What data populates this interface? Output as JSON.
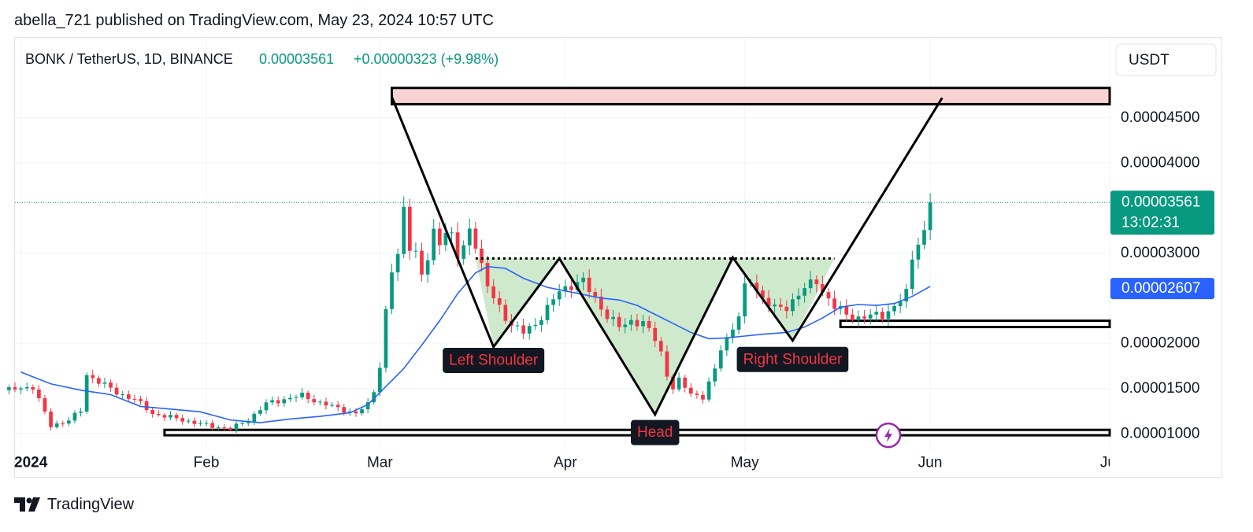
{
  "header": {
    "published": "abella_721 published on TradingView.com, May 23, 2024 10:57 UTC"
  },
  "footer": {
    "brand": "TradingView",
    "logo_icon": "tradingview-logo-icon"
  },
  "chart_data": {
    "type": "candlestick",
    "symbol_line": {
      "title": "BONK / TetherUS, 1D, BINANCE",
      "last": "0.00003561",
      "change": "+0.00000323 (+9.98%)"
    },
    "currency_button": "USDT",
    "price_scale": {
      "range": [
        8.5e-06,
        4.95e-05
      ],
      "ticks": [
        {
          "v": 4.5e-05,
          "label": "0.00004500"
        },
        {
          "v": 4e-05,
          "label": "0.00004000"
        },
        {
          "v": 3e-05,
          "label": "0.00003000"
        },
        {
          "v": 2e-05,
          "label": "0.00002000"
        },
        {
          "v": 1.5e-05,
          "label": "0.00001500"
        },
        {
          "v": 1e-05,
          "label": "0.00001000"
        }
      ],
      "badges": [
        {
          "name": "last-price-badge",
          "v": 3.561e-05,
          "label": "0.00003561",
          "sub": "13:02:31",
          "color": "#089981"
        },
        {
          "name": "ma-value-badge",
          "v": 2.607e-05,
          "label": "0.00002607",
          "color": "#2962ff"
        }
      ]
    },
    "time_scale": {
      "range": [
        -1,
        182
      ],
      "labels": [
        {
          "d": 0,
          "label": "2024",
          "bold": true
        },
        {
          "d": 31,
          "label": "Feb"
        },
        {
          "d": 60,
          "label": "Mar"
        },
        {
          "d": 91,
          "label": "Apr"
        },
        {
          "d": 121,
          "label": "May"
        },
        {
          "d": 152,
          "label": "Jun"
        },
        {
          "d": 182,
          "label": "Jul"
        }
      ]
    },
    "colors": {
      "up": "#089981",
      "down": "#f23645",
      "ma": "#2962ff",
      "pattern": "#000000",
      "pattern_fill": "#cfe9cc",
      "resistance_fill": "#f9d3d3",
      "grid": "#f0f3fa"
    },
    "candle_keypoints": [
      [
        -2,
        1.48e-05
      ],
      [
        2,
        1.52e-05
      ],
      [
        5,
        1.08e-05
      ],
      [
        8,
        1.15e-05
      ],
      [
        10,
        1.25e-05
      ],
      [
        11,
        1.65e-05
      ],
      [
        13,
        1.58e-05
      ],
      [
        16,
        1.45e-05
      ],
      [
        19,
        1.38e-05
      ],
      [
        22,
        1.22e-05
      ],
      [
        25,
        1.18e-05
      ],
      [
        29,
        1.12e-05
      ],
      [
        32,
        1.08e-05
      ],
      [
        35,
        1.05e-05
      ],
      [
        38,
        1.15e-05
      ],
      [
        41,
        1.33e-05
      ],
      [
        44,
        1.38e-05
      ],
      [
        47,
        1.42e-05
      ],
      [
        50,
        1.34e-05
      ],
      [
        53,
        1.28e-05
      ],
      [
        56,
        1.22e-05
      ],
      [
        58,
        1.32e-05
      ],
      [
        59,
        1.48e-05
      ],
      [
        60,
        1.75e-05
      ],
      [
        61,
        2.35e-05
      ],
      [
        62,
        2.8e-05
      ],
      [
        63,
        2.95e-05
      ],
      [
        64,
        3.5e-05
      ],
      [
        65,
        3.1e-05
      ],
      [
        66,
        3e-05
      ],
      [
        67,
        2.75e-05
      ],
      [
        68,
        2.92e-05
      ],
      [
        69,
        3.22e-05
      ],
      [
        70,
        3.15e-05
      ],
      [
        71,
        3.25e-05
      ],
      [
        72,
        3.18e-05
      ],
      [
        73,
        2.95e-05
      ],
      [
        74,
        3.05e-05
      ],
      [
        75,
        3.28e-05
      ],
      [
        76,
        3.12e-05
      ],
      [
        77,
        2.85e-05
      ],
      [
        78,
        2.62e-05
      ],
      [
        79,
        2.5e-05
      ],
      [
        80,
        2.4e-05
      ],
      [
        82,
        2.2e-05
      ],
      [
        84,
        2.12e-05
      ],
      [
        86,
        2.22e-05
      ],
      [
        88,
        2.38e-05
      ],
      [
        90,
        2.58e-05
      ],
      [
        92,
        2.65e-05
      ],
      [
        94,
        2.68e-05
      ],
      [
        96,
        2.5e-05
      ],
      [
        98,
        2.3e-05
      ],
      [
        100,
        2.18e-05
      ],
      [
        102,
        2.25e-05
      ],
      [
        104,
        2.22e-05
      ],
      [
        106,
        2.05e-05
      ],
      [
        107,
        1.9e-05
      ],
      [
        108,
        1.65e-05
      ],
      [
        109,
        1.5e-05
      ],
      [
        110,
        1.58e-05
      ],
      [
        112,
        1.45e-05
      ],
      [
        114,
        1.4e-05
      ],
      [
        116,
        1.7e-05
      ],
      [
        117,
        1.95e-05
      ],
      [
        118,
        2.05e-05
      ],
      [
        120,
        2.3e-05
      ],
      [
        121,
        2.6e-05
      ],
      [
        122,
        2.7e-05
      ],
      [
        124,
        2.5e-05
      ],
      [
        126,
        2.38e-05
      ],
      [
        128,
        2.4e-05
      ],
      [
        130,
        2.55e-05
      ],
      [
        132,
        2.65e-05
      ],
      [
        133,
        2.7e-05
      ],
      [
        134,
        2.58e-05
      ],
      [
        136,
        2.4e-05
      ],
      [
        138,
        2.32e-05
      ],
      [
        140,
        2.28e-05
      ],
      [
        142,
        2.3e-05
      ],
      [
        144,
        2.32e-05
      ],
      [
        146,
        2.4e-05
      ],
      [
        148,
        2.55e-05
      ],
      [
        149,
        2.95e-05
      ],
      [
        150,
        3.15e-05
      ],
      [
        151,
        3.22e-05
      ],
      [
        152,
        3.561e-05
      ]
    ],
    "moving_average": [
      [
        0,
        1.68e-05
      ],
      [
        5,
        1.55e-05
      ],
      [
        10,
        1.48e-05
      ],
      [
        15,
        1.43e-05
      ],
      [
        20,
        1.3e-05
      ],
      [
        25,
        1.27e-05
      ],
      [
        30,
        1.24e-05
      ],
      [
        35,
        1.15e-05
      ],
      [
        40,
        1.12e-05
      ],
      [
        45,
        1.16e-05
      ],
      [
        50,
        1.19e-05
      ],
      [
        55,
        1.23e-05
      ],
      [
        58,
        1.32e-05
      ],
      [
        61,
        1.52e-05
      ],
      [
        64,
        1.72e-05
      ],
      [
        67,
        1.98e-05
      ],
      [
        70,
        2.25e-05
      ],
      [
        73,
        2.55e-05
      ],
      [
        76,
        2.78e-05
      ],
      [
        78,
        2.85e-05
      ],
      [
        81,
        2.83e-05
      ],
      [
        84,
        2.72e-05
      ],
      [
        88,
        2.62e-05
      ],
      [
        91,
        2.58e-05
      ],
      [
        94,
        2.54e-05
      ],
      [
        97,
        2.5e-05
      ],
      [
        100,
        2.48e-05
      ],
      [
        103,
        2.42e-05
      ],
      [
        106,
        2.32e-05
      ],
      [
        109,
        2.22e-05
      ],
      [
        112,
        2.12e-05
      ],
      [
        115,
        2.05e-05
      ],
      [
        118,
        2.06e-05
      ],
      [
        121,
        2.08e-05
      ],
      [
        124,
        2.1e-05
      ],
      [
        128,
        2.12e-05
      ],
      [
        131,
        2.18e-05
      ],
      [
        134,
        2.28e-05
      ],
      [
        137,
        2.4e-05
      ],
      [
        140,
        2.43e-05
      ],
      [
        143,
        2.42e-05
      ],
      [
        146,
        2.44e-05
      ],
      [
        149,
        2.52e-05
      ],
      [
        152,
        2.63e-05
      ]
    ],
    "pattern_path": [
      [
        62,
        4.73e-05
      ],
      [
        79,
        1.96e-05
      ],
      [
        90,
        2.94e-05
      ],
      [
        106,
        1.21e-05
      ],
      [
        119,
        2.95e-05
      ],
      [
        129,
        2.03e-05
      ],
      [
        154,
        4.72e-05
      ]
    ],
    "pattern_fill_polygon": [
      [
        76,
        2.94e-05
      ],
      [
        79,
        1.96e-05
      ],
      [
        90,
        2.94e-05
      ],
      [
        106,
        1.21e-05
      ],
      [
        119,
        2.95e-05
      ],
      [
        129,
        2.03e-05
      ],
      [
        136,
        2.94e-05
      ]
    ],
    "neckline": {
      "from": 76,
      "to": 136,
      "v": 2.94e-05
    },
    "zones": [
      {
        "name": "resistance-zone",
        "x1": 62,
        "x2": 182,
        "top": 4.83e-05,
        "bottom": 4.65e-05,
        "fill": "#f9d3d3"
      },
      {
        "name": "mid-support-zone",
        "x1": 137,
        "x2": 182,
        "top": 2.25e-05,
        "bottom": 2.18e-05,
        "fill": "#ffffff"
      },
      {
        "name": "base-support-zone",
        "x1": 24,
        "x2": 182,
        "top": 1.04e-05,
        "bottom": 9.8e-06,
        "fill": "#ffffff"
      }
    ],
    "annotations": [
      {
        "name": "left-shoulder-label",
        "text": "Left Shoulder",
        "d": 79,
        "v": 1.81e-05
      },
      {
        "name": "head-label",
        "text": "Head",
        "d": 106,
        "v": 1.01e-05
      },
      {
        "name": "right-shoulder-label",
        "text": "Right Shoulder",
        "d": 129,
        "v": 1.82e-05
      }
    ],
    "flash_icon": {
      "name": "lightning-icon",
      "d": 145,
      "v": 9.8e-06
    }
  }
}
